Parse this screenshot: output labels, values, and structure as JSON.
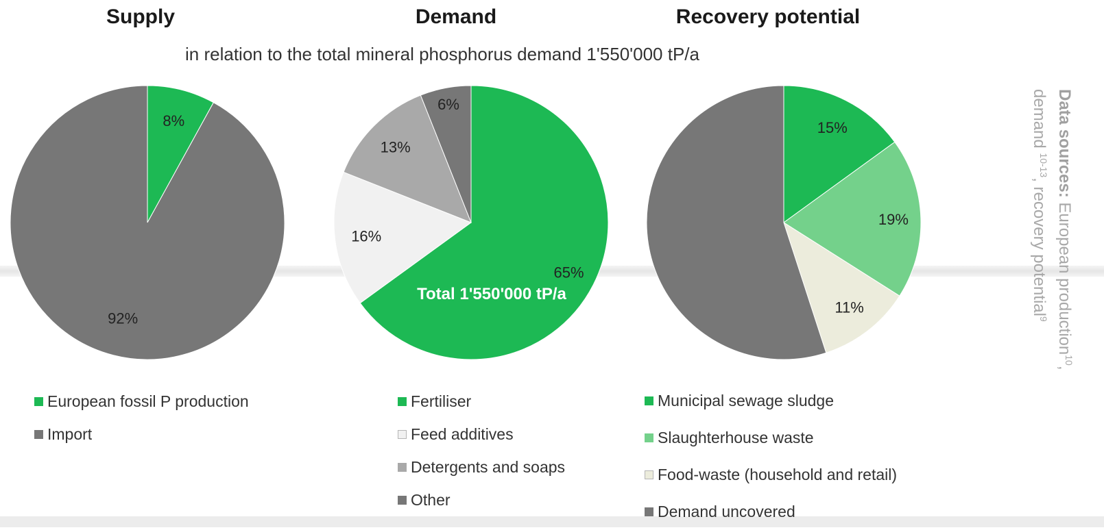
{
  "subtitle": "in relation to the total mineral phosphorus demand 1'550'000 tP/a",
  "sources": {
    "label": "Data sources:",
    "line1": "European production",
    "line1_sup": "10",
    "line1_tail": ",",
    "line2": "demand",
    "line2_sup": "10-13",
    "line2_mid": ", recovery potential",
    "line2_sup2": "9"
  },
  "chart_data": [
    {
      "type": "pie",
      "title": "Supply",
      "slices": [
        {
          "label": "European fossil P production",
          "value": 8,
          "display": "8%",
          "color": "#1db954"
        },
        {
          "label": "Import",
          "value": 92,
          "display": "92%",
          "color": "#777777"
        }
      ]
    },
    {
      "type": "pie",
      "title": "Demand",
      "center_text": "Total 1'550'000 tP/a",
      "slices": [
        {
          "label": "Fertiliser",
          "value": 65,
          "display": "65%",
          "color": "#1db954"
        },
        {
          "label": "Feed additives",
          "value": 16,
          "display": "16%",
          "color": "#f1f1f1"
        },
        {
          "label": "Detergents and soaps",
          "value": 13,
          "display": "13%",
          "color": "#a9a9a9"
        },
        {
          "label": "Other",
          "value": 6,
          "display": "6%",
          "color": "#777777"
        }
      ]
    },
    {
      "type": "pie",
      "title": "Recovery potential",
      "slices": [
        {
          "label": "Municipal sewage sludge",
          "value": 15,
          "display": "15%",
          "color": "#1db954"
        },
        {
          "label": "Slaughterhouse waste",
          "value": 19,
          "display": "19%",
          "color": "#74d18b"
        },
        {
          "label": "Food-waste (household and retail)",
          "value": 11,
          "display": "11%",
          "color": "#ececdc"
        },
        {
          "label": "Demand uncovered",
          "value": 55,
          "display": "",
          "color": "#777777"
        }
      ]
    }
  ]
}
